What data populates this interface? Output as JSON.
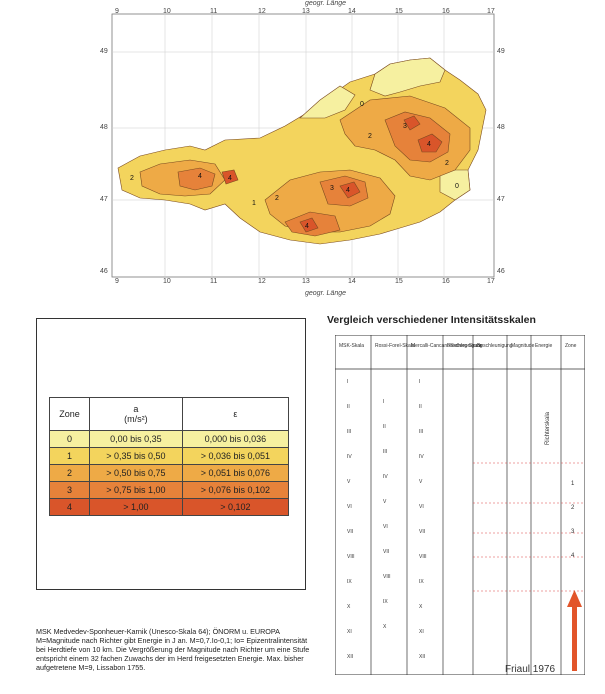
{
  "map": {
    "top_axis_label": "geogr. Länge",
    "bottom_axis_label": "geogr. Länge",
    "x_ticks": [
      "9",
      "10",
      "11",
      "12",
      "13",
      "14",
      "15",
      "16",
      "17"
    ],
    "y_ticks": [
      "49",
      "48",
      "47",
      "46"
    ],
    "zone_colors": {
      "0": "#f6f0a0",
      "1": "#f3d45d",
      "2": "#eeaa46",
      "3": "#e6823a",
      "4": "#d9552a"
    },
    "zone_labels": [
      "0",
      "1",
      "2",
      "3",
      "4"
    ]
  },
  "legend": {
    "headers": {
      "zone": "Zone",
      "a": "a",
      "a_unit": "(m/s²)",
      "eps": "ε"
    },
    "rows": [
      {
        "zone": "0",
        "a": "0,00 bis 0,35",
        "eps": "0,000 bis 0,036",
        "color": "#f6f0a0"
      },
      {
        "zone": "1",
        "a": "> 0,35 bis 0,50",
        "eps": "> 0,036 bis 0,051",
        "color": "#f3d45d"
      },
      {
        "zone": "2",
        "a": "> 0,50 bis 0,75",
        "eps": "> 0,051 bis 0,076",
        "color": "#eeaa46"
      },
      {
        "zone": "3",
        "a": "> 0,75 bis 1,00",
        "eps": "> 0,076 bis 0,102",
        "color": "#e6823a"
      },
      {
        "zone": "4",
        "a": "> 1,00",
        "eps": "> 0,102",
        "color": "#d9552a"
      }
    ]
  },
  "caption": "MSK Medvedev-Sponheuer-Karnik (Unesco-Skala 64); ÖNORM u. EUROPA M=Magnitude nach Richter gibt Energie in J an. M=0,7.Io-0,1; Io= Epizentralintensität bei Herdtiefe von 10 km. Die Vergrößerung der Magnitude nach Richter um eine Stufe entspricht einem 32 fachen Zuwachs der im Herd freigesetzten Energie. Max. bisher aufgetretene M=9, Lissabon 1755.",
  "scale": {
    "title": "Vergleich verschiedener Intensitätsskalen",
    "columns": [
      "MSK-Skala",
      "Rossi-Forel-Skala",
      "Mercalli-Cancani-Sieberg-Skala",
      "Beschleunigung",
      "Beschleunigung",
      "Magnitude",
      "Energie",
      "Zone"
    ],
    "msk": [
      "I",
      "II",
      "III",
      "IV",
      "V",
      "VI",
      "VII",
      "VIII",
      "IX",
      "X",
      "XI",
      "XII"
    ],
    "rf": [
      "I",
      "II",
      "III",
      "IV",
      "V",
      "VI",
      "VII",
      "VIII",
      "IX",
      "X"
    ],
    "mcs": [
      "I",
      "II",
      "III",
      "IV",
      "V",
      "VI",
      "VII",
      "VIII",
      "IX",
      "X",
      "XI",
      "XII"
    ],
    "zone_nums": [
      "1",
      "2",
      "3",
      "4"
    ],
    "richter_label": "Richterskala",
    "event": "Friaul 1976"
  }
}
